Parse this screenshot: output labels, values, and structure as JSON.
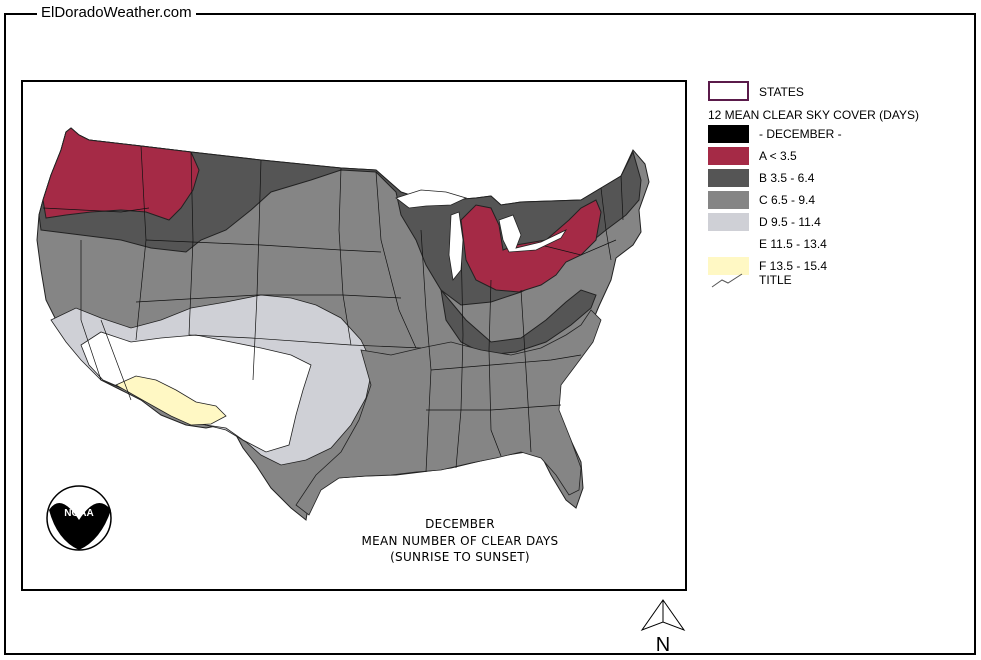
{
  "header": {
    "site_title": "ElDoradoWeather.com"
  },
  "legend": {
    "states_label": "STATES",
    "heading": "12 MEAN CLEAR SKY COVER (DAYS)",
    "items": [
      {
        "label": "- DECEMBER -",
        "color": "#000000"
      },
      {
        "label": "A < 3.5",
        "color": "#a52a46"
      },
      {
        "label": "B 3.5 - 6.4",
        "color": "#555555"
      },
      {
        "label": "C 6.5 - 9.4",
        "color": "#858585"
      },
      {
        "label": "D 9.5 - 11.4",
        "color": "#cfd0d6"
      },
      {
        "label": "E 11.5 - 13.4",
        "color": "#ffffff"
      },
      {
        "label": "F 13.5 - 15.4",
        "color": "#fff8c4"
      }
    ],
    "title_label": "TITLE",
    "states_outline_color": "#5a1a4a"
  },
  "map": {
    "caption_line1": "DECEMBER",
    "caption_line2": "MEAN NUMBER OF CLEAR DAYS",
    "caption_line3": "(SUNRISE TO SUNSET)",
    "logo_text": "NOAA",
    "north_label": "N"
  }
}
